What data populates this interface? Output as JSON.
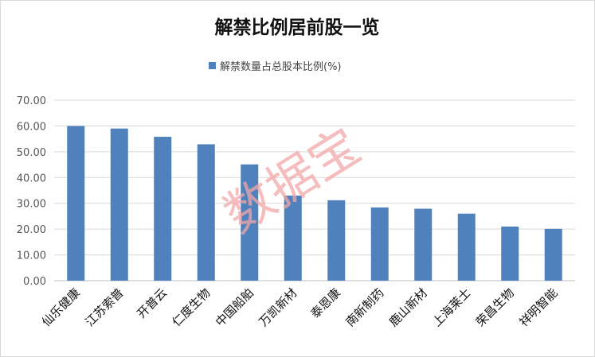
{
  "chart_data": {
    "type": "bar",
    "title": "解禁比例居前股一览",
    "legend_position": "top-center",
    "grid": true,
    "ylim": [
      0,
      70
    ],
    "yticks": [
      "70.00",
      "60.00",
      "50.00",
      "40.00",
      "30.00",
      "20.00",
      "10.00",
      "0.00"
    ],
    "categories": [
      "仙乐健康",
      "江苏索普",
      "开普云",
      "仁度生物",
      "中国船舶",
      "万凯新材",
      "泰恩康",
      "南新制药",
      "鹿山新材",
      "上海莱士",
      "荣昌生物",
      "祥明智能"
    ],
    "series": [
      {
        "name": "解禁数量占总股本比例(%)",
        "color": "#4f81bd",
        "values": [
          60.0,
          59.0,
          55.8,
          52.9,
          45.1,
          33.0,
          31.2,
          28.4,
          27.9,
          26.0,
          21.0,
          20.1
        ]
      }
    ]
  },
  "watermark": {
    "text": "数据宝",
    "color": "#f2a7a7"
  }
}
